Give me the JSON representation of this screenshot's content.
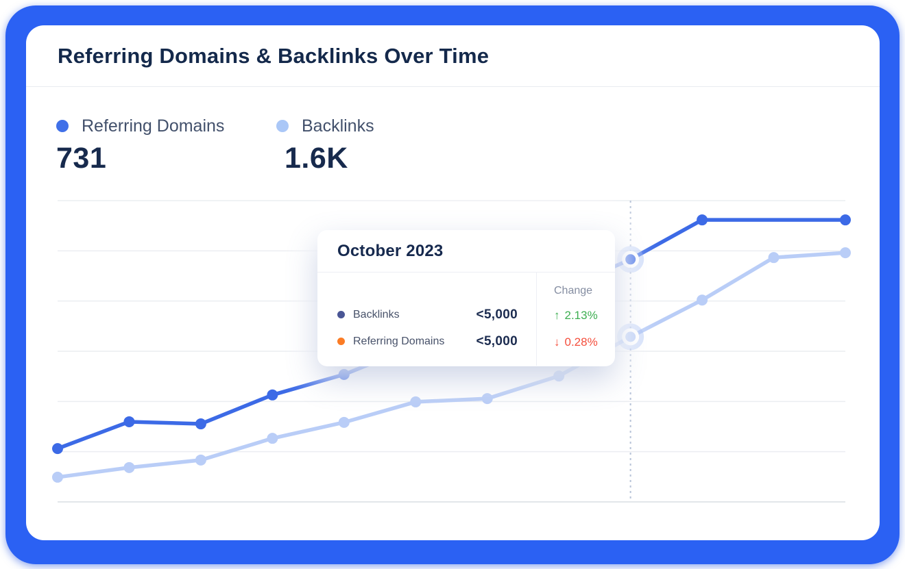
{
  "card": {
    "title": "Referring Domains & Backlinks Over Time"
  },
  "legend": [
    {
      "label": "Referring Domains",
      "value": "731",
      "color": "#4070e8"
    },
    {
      "label": "Backlinks",
      "value": "1.6K",
      "color": "#aac7f7"
    }
  ],
  "tooltip": {
    "title": "October 2023",
    "change_header": "Change",
    "rows": [
      {
        "label": "Backlinks",
        "value": "<5,000",
        "dot_color": "#4a5695",
        "arrow": "↑",
        "change": "2.13%",
        "change_color": "#3dae51"
      },
      {
        "label": "Referring Domains",
        "value": "<5,000",
        "dot_color": "#fb7c25",
        "arrow": "↓",
        "change": "0.28%",
        "change_color": "#f44e3c"
      }
    ]
  },
  "chart_data": {
    "type": "line",
    "title": "Referring Domains & Backlinks Over Time",
    "x": [
      1,
      2,
      3,
      4,
      5,
      6,
      7,
      8,
      9,
      10,
      11,
      12
    ],
    "xlabel": "",
    "ylabel": "",
    "axis_tick_labels_visible": false,
    "grid": "horizontal",
    "gridline_count": 7,
    "ylim": [
      0,
      100
    ],
    "y_scale": "relative_percent_of_plot_height",
    "hover_index": 8,
    "hover_label": "October 2023",
    "legend_position": "top-left",
    "series": [
      {
        "name": "Backlinks",
        "color": "#b9cdf7",
        "values": [
          8.2,
          11.4,
          13.9,
          21.1,
          26.4,
          33.2,
          34.3,
          41.8,
          54.8,
          67.0,
          81.1,
          82.7
        ]
      },
      {
        "name": "Referring Domains",
        "color": "#3c6ae6",
        "values": [
          17.7,
          26.6,
          25.9,
          35.5,
          42.3,
          51.8,
          60.2,
          70.0,
          80.5,
          93.6,
          93.6,
          93.6
        ],
        "marker_skip_indices": [
          10
        ]
      }
    ]
  }
}
